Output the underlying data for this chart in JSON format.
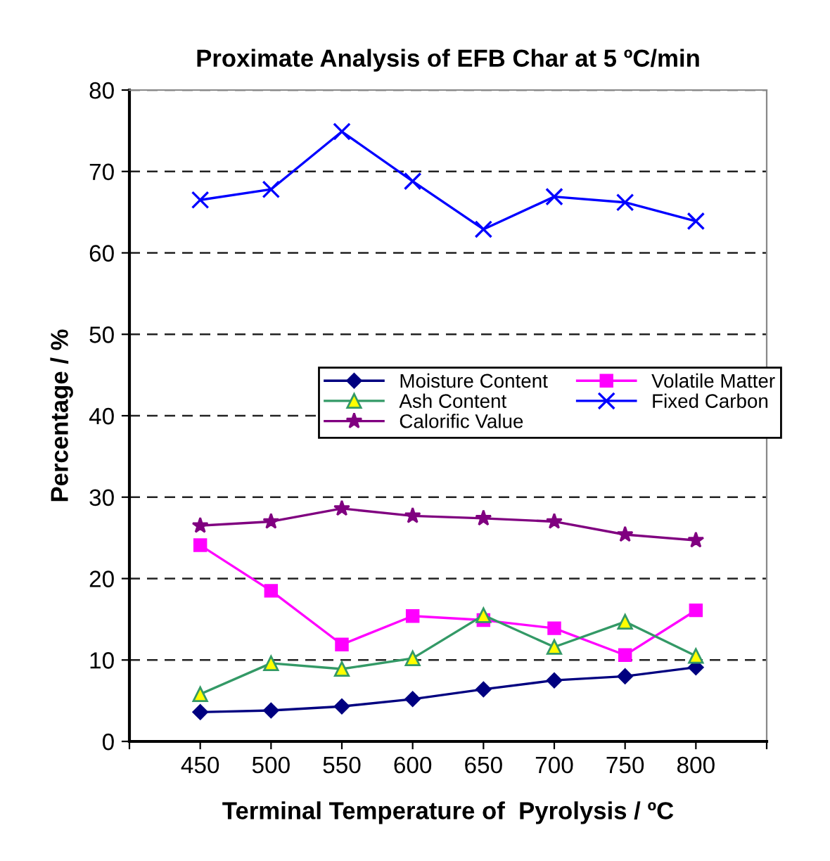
{
  "chart_data": {
    "type": "line",
    "title": "Proximate Analysis of EFB Char at 5 ºC/min",
    "xlabel": "Terminal Temperature of  Pyrolysis / ºC",
    "ylabel": "Percentage / %",
    "x": [
      450,
      500,
      550,
      600,
      650,
      700,
      750,
      800
    ],
    "xlim": [
      400,
      850
    ],
    "xticks": [
      {
        "value": 400,
        "label": null
      },
      450,
      500,
      550,
      600,
      650,
      700,
      750,
      800,
      {
        "value": 850,
        "label": null
      }
    ],
    "ylim": [
      0,
      80
    ],
    "yticks": [
      0,
      10,
      20,
      30,
      40,
      50,
      60,
      70,
      80
    ],
    "grid": "y",
    "legend": "center",
    "line_style": "solid",
    "series": [
      {
        "name": "Moisture Content",
        "color": "#000080",
        "marker": "diamond",
        "values": [
          3.6,
          3.8,
          4.3,
          5.2,
          6.4,
          7.5,
          8.0,
          9.1
        ]
      },
      {
        "name": "Ash Content",
        "color": "#339966",
        "marker": "triangle",
        "values": [
          5.8,
          9.6,
          8.9,
          10.2,
          15.5,
          11.6,
          14.7,
          10.5
        ]
      },
      {
        "name": "Calorific Value",
        "color": "#800080",
        "marker": "star",
        "values": [
          26.5,
          27.0,
          28.6,
          27.7,
          27.4,
          27.0,
          25.4,
          24.7
        ]
      },
      {
        "name": "Volatile Matter",
        "color": "#ff00ff",
        "marker": "square",
        "values": [
          24.1,
          18.5,
          11.9,
          15.4,
          14.9,
          13.9,
          10.6,
          16.1
        ]
      },
      {
        "name": "Fixed Carbon",
        "color": "#0000ff",
        "marker": "cross",
        "values": [
          66.5,
          67.8,
          74.9,
          68.8,
          62.9,
          66.9,
          66.2,
          63.9
        ]
      }
    ]
  }
}
